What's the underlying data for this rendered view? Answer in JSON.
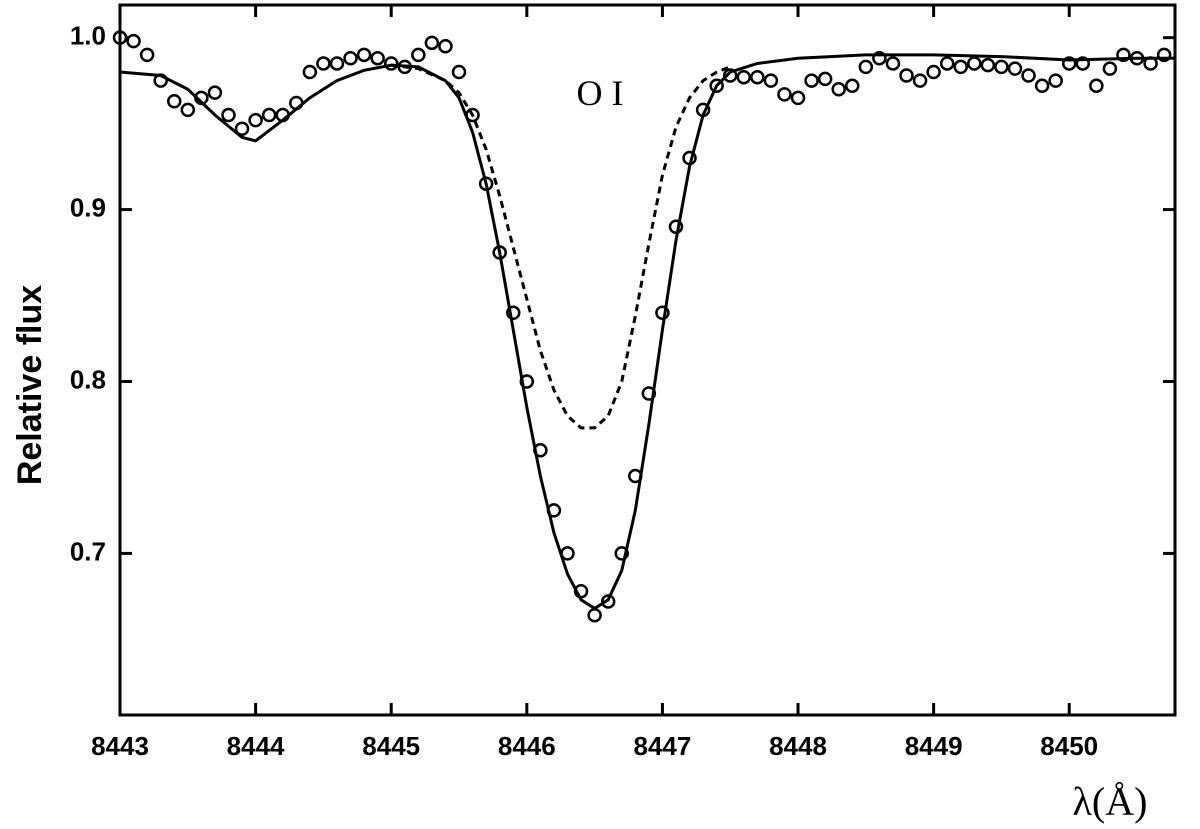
{
  "chart_data": {
    "type": "line",
    "annotation": "O I",
    "xlabel": "λ(Å)",
    "ylabel": "Relative flux",
    "xlim": [
      8443,
      8450.78
    ],
    "ylim": [
      0.606,
      1.019
    ],
    "xticks": [
      8443,
      8444,
      8445,
      8446,
      8447,
      8448,
      8449,
      8450
    ],
    "yticks": [
      0.7,
      0.8,
      0.9,
      {
        "value": 1,
        "label": "1.0"
      }
    ],
    "series": [
      {
        "style": "markers",
        "color": "#000000",
        "x": [
          8443.0,
          8443.1,
          8443.2,
          8443.3,
          8443.4,
          8443.5,
          8443.6,
          8443.7,
          8443.8,
          8443.9,
          8444.0,
          8444.1,
          8444.2,
          8444.3,
          8444.4,
          8444.5,
          8444.6,
          8444.7,
          8444.8,
          8444.9,
          8445.0,
          8445.1,
          8445.2,
          8445.3,
          8445.4,
          8445.5,
          8445.6,
          8445.7,
          8445.8,
          8445.9,
          8446.0,
          8446.1,
          8446.2,
          8446.3,
          8446.4,
          8446.5,
          8446.6,
          8446.7,
          8446.8,
          8446.9,
          8447.0,
          8447.1,
          8447.2,
          8447.3,
          8447.4,
          8447.5,
          8447.6,
          8447.7,
          8447.8,
          8447.9,
          8448.0,
          8448.1,
          8448.2,
          8448.3,
          8448.4,
          8448.5,
          8448.6,
          8448.7,
          8448.8,
          8448.9,
          8449.0,
          8449.1,
          8449.2,
          8449.3,
          8449.4,
          8449.5,
          8449.6,
          8449.7,
          8449.8,
          8449.9,
          8450.0,
          8450.1,
          8450.2,
          8450.3,
          8450.4,
          8450.5,
          8450.6,
          8450.7
        ],
        "values": [
          1.0,
          0.998,
          0.99,
          0.975,
          0.963,
          0.958,
          0.965,
          0.968,
          0.955,
          0.947,
          0.952,
          0.955,
          0.955,
          0.962,
          0.98,
          0.985,
          0.985,
          0.988,
          0.99,
          0.988,
          0.985,
          0.983,
          0.99,
          0.997,
          0.995,
          0.98,
          0.955,
          0.915,
          0.875,
          0.84,
          0.8,
          0.76,
          0.725,
          0.7,
          0.678,
          0.664,
          0.672,
          0.7,
          0.745,
          0.793,
          0.84,
          0.89,
          0.93,
          0.958,
          0.972,
          0.978,
          0.977,
          0.977,
          0.975,
          0.967,
          0.965,
          0.975,
          0.976,
          0.97,
          0.972,
          0.983,
          0.988,
          0.985,
          0.978,
          0.975,
          0.98,
          0.985,
          0.983,
          0.985,
          0.984,
          0.983,
          0.982,
          0.978,
          0.972,
          0.975,
          0.985,
          0.985,
          0.972,
          0.982,
          0.99,
          0.988,
          0.985,
          0.99
        ]
      },
      {
        "style": "solid",
        "color": "#000000",
        "x": [
          8443.0,
          8443.3,
          8443.5,
          8443.7,
          8443.9,
          8444.0,
          8444.2,
          8444.4,
          8444.6,
          8444.8,
          8445.0,
          8445.2,
          8445.4,
          8445.5,
          8445.6,
          8445.7,
          8445.8,
          8445.9,
          8446.0,
          8446.1,
          8446.2,
          8446.3,
          8446.4,
          8446.5,
          8446.6,
          8446.7,
          8446.8,
          8446.9,
          8447.0,
          8447.1,
          8447.2,
          8447.3,
          8447.4,
          8447.5,
          8447.7,
          8448.0,
          8448.5,
          8449.0,
          8449.5,
          8450.0,
          8450.5,
          8450.78
        ],
        "values": [
          0.98,
          0.978,
          0.97,
          0.955,
          0.942,
          0.94,
          0.952,
          0.965,
          0.975,
          0.981,
          0.984,
          0.983,
          0.975,
          0.965,
          0.945,
          0.915,
          0.875,
          0.83,
          0.785,
          0.745,
          0.712,
          0.688,
          0.673,
          0.668,
          0.673,
          0.69,
          0.725,
          0.775,
          0.83,
          0.882,
          0.925,
          0.955,
          0.972,
          0.98,
          0.985,
          0.988,
          0.99,
          0.99,
          0.989,
          0.987,
          0.988,
          0.988
        ]
      },
      {
        "style": "dashed",
        "color": "#000000",
        "x": [
          8445.0,
          8445.2,
          8445.4,
          8445.5,
          8445.6,
          8445.7,
          8445.8,
          8445.9,
          8446.0,
          8446.1,
          8446.2,
          8446.3,
          8446.4,
          8446.5,
          8446.6,
          8446.7,
          8446.8,
          8446.9,
          8447.0,
          8447.1,
          8447.2,
          8447.3,
          8447.4,
          8447.5
        ],
        "values": [
          0.984,
          0.982,
          0.975,
          0.968,
          0.955,
          0.935,
          0.908,
          0.878,
          0.848,
          0.818,
          0.795,
          0.78,
          0.773,
          0.773,
          0.78,
          0.8,
          0.838,
          0.88,
          0.92,
          0.948,
          0.965,
          0.975,
          0.98,
          0.983
        ]
      }
    ]
  }
}
